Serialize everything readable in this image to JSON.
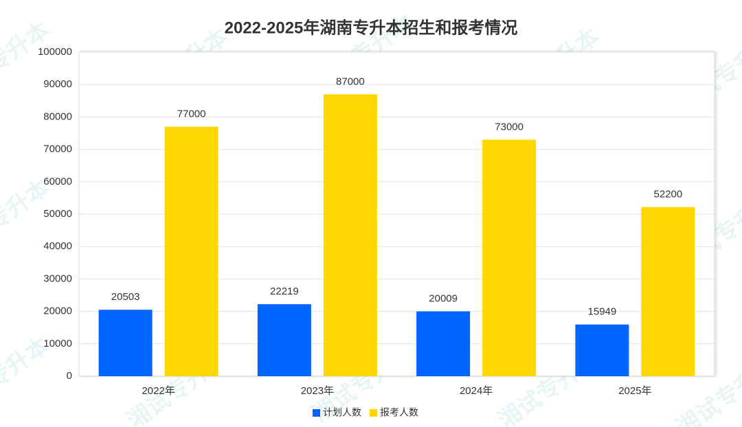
{
  "chart_data": {
    "type": "bar",
    "title": "2022-2025年湖南专升本招生和报考情况",
    "watermark": "湘试专升本",
    "categories": [
      "2022年",
      "2023年",
      "2024年",
      "2025年"
    ],
    "series": [
      {
        "name": "计划人数",
        "color": "#0066ff",
        "values": [
          20503,
          22219,
          20009,
          15949
        ]
      },
      {
        "name": "报考人数",
        "color": "#ffd700",
        "values": [
          77000,
          87000,
          73000,
          52200
        ]
      }
    ],
    "ylim": [
      0,
      100000
    ],
    "yticks": [
      0,
      10000,
      20000,
      30000,
      40000,
      50000,
      60000,
      70000,
      80000,
      90000,
      100000
    ],
    "grid": true,
    "legend": "bottom"
  }
}
